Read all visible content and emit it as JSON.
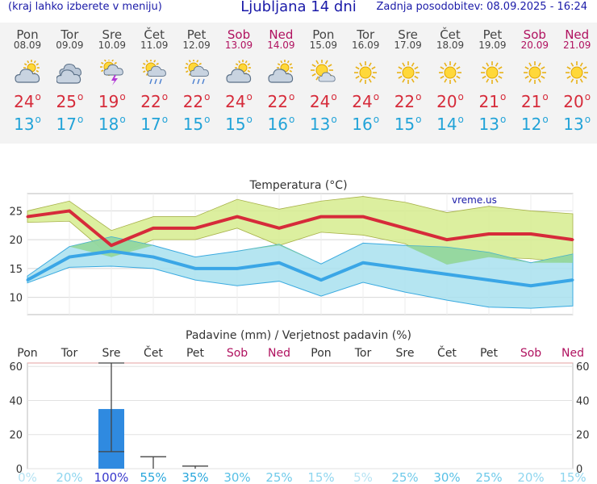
{
  "header": {
    "left_note": "(kraj lahko izberete v meniju)",
    "title": "Ljubljana 14 dni",
    "updated": "Zadnja posodobitev: 08.09.2025 - 16:24"
  },
  "forecast": [
    {
      "day": "Pon",
      "date": "08.09",
      "icon": "partly-cloudy-icon",
      "tmax": "24",
      "tmin": "13",
      "weekend": false
    },
    {
      "day": "Tor",
      "date": "09.09",
      "icon": "cloudy-icon",
      "tmax": "25",
      "tmin": "17",
      "weekend": false
    },
    {
      "day": "Sre",
      "date": "10.09",
      "icon": "thunderstorm-icon",
      "tmax": "19",
      "tmin": "18",
      "weekend": false
    },
    {
      "day": "Čet",
      "date": "11.09",
      "icon": "sun-rain-icon",
      "tmax": "22",
      "tmin": "17",
      "weekend": false
    },
    {
      "day": "Pet",
      "date": "12.09",
      "icon": "sun-rain-icon",
      "tmax": "22",
      "tmin": "15",
      "weekend": false
    },
    {
      "day": "Sob",
      "date": "13.09",
      "icon": "partly-cloudy-icon",
      "tmax": "24",
      "tmin": "15",
      "weekend": true
    },
    {
      "day": "Ned",
      "date": "14.09",
      "icon": "partly-cloudy-icon",
      "tmax": "22",
      "tmin": "16",
      "weekend": true
    },
    {
      "day": "Pon",
      "date": "15.09",
      "icon": "sun-cloud-icon",
      "tmax": "24",
      "tmin": "13",
      "weekend": false
    },
    {
      "day": "Tor",
      "date": "16.09",
      "icon": "sun-icon",
      "tmax": "24",
      "tmin": "16",
      "weekend": false
    },
    {
      "day": "Sre",
      "date": "17.09",
      "icon": "sun-icon",
      "tmax": "22",
      "tmin": "15",
      "weekend": false
    },
    {
      "day": "Čet",
      "date": "18.09",
      "icon": "sun-icon",
      "tmax": "20",
      "tmin": "14",
      "weekend": false
    },
    {
      "day": "Pet",
      "date": "19.09",
      "icon": "sun-icon",
      "tmax": "21",
      "tmin": "13",
      "weekend": false
    },
    {
      "day": "Sob",
      "date": "20.09",
      "icon": "sun-icon",
      "tmax": "21",
      "tmin": "12",
      "weekend": true
    },
    {
      "day": "Ned",
      "date": "21.09",
      "icon": "sun-icon",
      "tmax": "20",
      "tmin": "13",
      "weekend": true
    }
  ],
  "colors": {
    "max": "#d62b3a",
    "min": "#22a3d8",
    "weekend": "#b0115f",
    "max_band": "#d6ec8e",
    "min_band": "#a8e0ee",
    "overlap": "#8dd48a",
    "bar": "#2f8ae0"
  },
  "chart_data": [
    {
      "type": "line",
      "title": "Temperatura (°C)",
      "watermark": "vreme.us",
      "x": [
        "08.09",
        "09.09",
        "10.09",
        "11.09",
        "12.09",
        "13.09",
        "14.09",
        "15.09",
        "16.09",
        "17.09",
        "18.09",
        "19.09",
        "20.09",
        "21.09"
      ],
      "ylim": [
        7,
        28
      ],
      "yticks": [
        10,
        15,
        20,
        25
      ],
      "grid": true,
      "series": [
        {
          "role": "max",
          "values": [
            24,
            25,
            19,
            22,
            22,
            24,
            22,
            24,
            24,
            22,
            20,
            21,
            21,
            20
          ],
          "band_low": [
            23,
            23.2,
            17,
            20,
            20,
            22,
            19,
            21.3,
            20.8,
            19.3,
            15.7,
            17,
            16.7,
            16
          ],
          "band_high": [
            25,
            26.7,
            21.6,
            24,
            24,
            27,
            25.3,
            26.7,
            27.5,
            26.5,
            24.7,
            25.8,
            25,
            24.5
          ]
        },
        {
          "role": "min",
          "values": [
            13,
            17,
            18,
            17,
            15,
            15,
            16,
            13,
            16,
            15,
            14,
            13,
            12,
            13
          ],
          "band_low": [
            12.5,
            15.2,
            15.4,
            15,
            13,
            12,
            12.8,
            10.2,
            12.6,
            10.9,
            9.5,
            8.3,
            8.1,
            8.5
          ],
          "band_high": [
            13.7,
            18.8,
            20.5,
            19,
            17,
            18,
            19.2,
            15.8,
            19.4,
            19,
            18.7,
            17.8,
            16,
            17.5
          ]
        }
      ]
    },
    {
      "type": "bar",
      "title": "Padavine (mm) / Verjetnost padavin (%)",
      "categories": [
        "Pon",
        "Tor",
        "Sre",
        "Čet",
        "Pet",
        "Sob",
        "Ned",
        "Pon",
        "Tor",
        "Sre",
        "Čet",
        "Pet",
        "Sob",
        "Ned"
      ],
      "weekend": [
        false,
        false,
        false,
        false,
        false,
        true,
        true,
        false,
        false,
        false,
        false,
        false,
        true,
        true
      ],
      "values": [
        0,
        0,
        35,
        0,
        0,
        0,
        0,
        0,
        0,
        0,
        0,
        0,
        0,
        0
      ],
      "error_low": [
        null,
        null,
        10,
        0,
        0,
        null,
        null,
        null,
        null,
        null,
        null,
        null,
        null,
        null
      ],
      "error_high": [
        null,
        null,
        62,
        7,
        1.5,
        null,
        null,
        null,
        null,
        null,
        null,
        null,
        null,
        null
      ],
      "probability": [
        "0%",
        "20%",
        "100%",
        "55%",
        "35%",
        "30%",
        "25%",
        "15%",
        "5%",
        "25%",
        "30%",
        "25%",
        "20%",
        "15%"
      ],
      "probability_colors": [
        "#b6e3f3",
        "#8fd6ef",
        "#3838cc",
        "#2aa7dc",
        "#2aa7dc",
        "#57c0e6",
        "#6fcaea",
        "#8fd6ef",
        "#b6e3f3",
        "#6fcaea",
        "#57c0e6",
        "#6fcaea",
        "#8fd6ef",
        "#8fd6ef"
      ],
      "ylim": [
        0,
        62
      ],
      "yticks": [
        0,
        20,
        40,
        60
      ]
    }
  ]
}
